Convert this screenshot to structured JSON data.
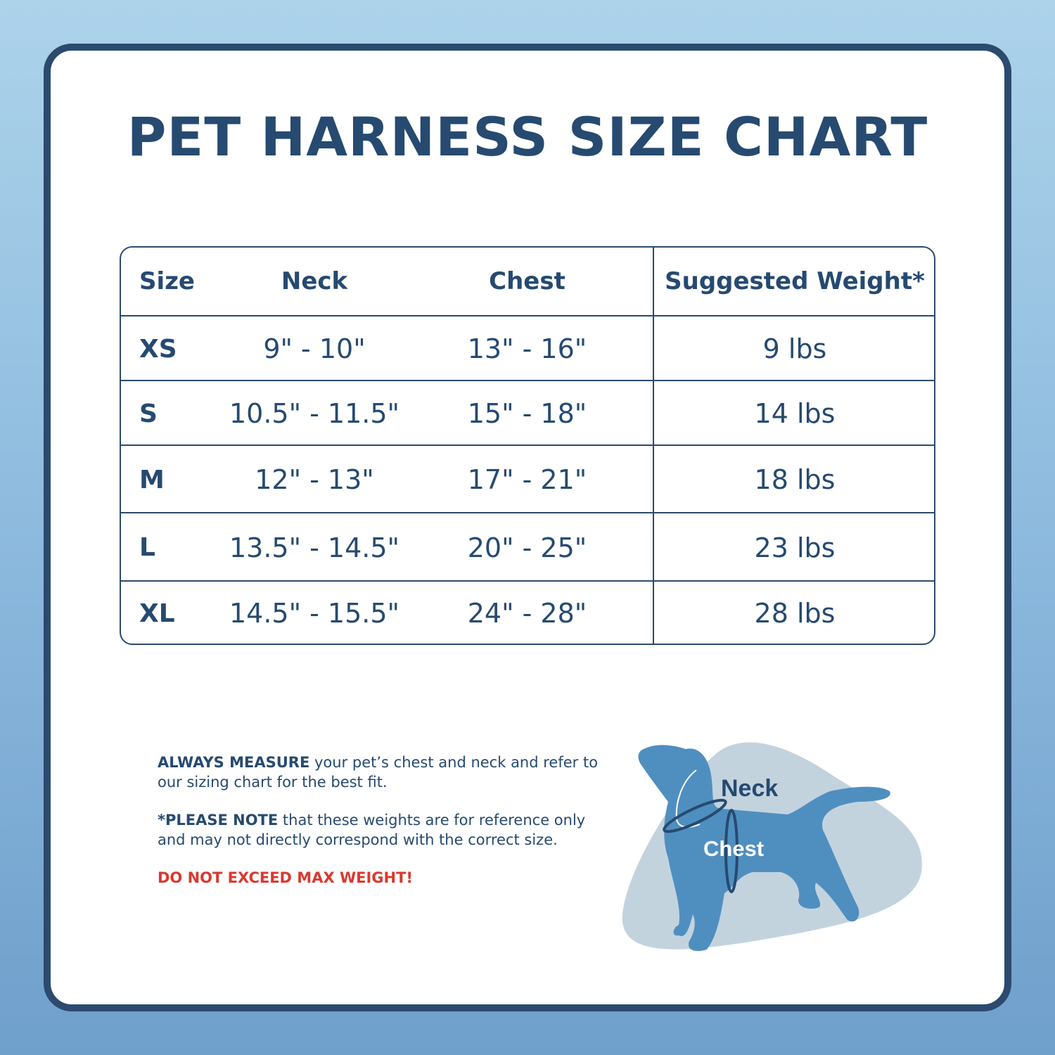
{
  "title": "PET HARNESS SIZE CHART",
  "table": {
    "headers": [
      "Size",
      "Neck",
      "Chest",
      "Suggested Weight*"
    ],
    "rows": [
      {
        "size": "XS",
        "neck": "9\" - 10\"",
        "chest": "13\" - 16\"",
        "weight": "9 lbs"
      },
      {
        "size": "S",
        "neck": "10.5\" - 11.5\"",
        "chest": "15\" - 18\"",
        "weight": "14 lbs"
      },
      {
        "size": "M",
        "neck": "12\" - 13\"",
        "chest": "17\" - 21\"",
        "weight": "18 lbs"
      },
      {
        "size": "L",
        "neck": "13.5\" - 14.5\"",
        "chest": "20\" - 25\"",
        "weight": "23 lbs"
      },
      {
        "size": "XL",
        "neck": "14.5\" - 15.5\"",
        "chest": "24\" - 28\"",
        "weight": "28 lbs"
      }
    ]
  },
  "notes": {
    "measure_bold": "ALWAYS MEASURE",
    "measure_text": " your pet’s chest and neck and refer to our sizing chart for the best fit.",
    "note_bold": "*PLEASE NOTE",
    "note_text": " that these weights are for reference only and may not directly correspond with the correct size.",
    "warning": "DO NOT EXCEED MAX WEIGHT!"
  },
  "illustration": {
    "neck_label": "Neck",
    "chest_label": "Chest",
    "icon": "dog-silhouette-icon"
  },
  "colors": {
    "primary": "#264a70",
    "warning": "#d9392f",
    "dog": "#4f8fc0",
    "blob": "#c3d3de"
  }
}
